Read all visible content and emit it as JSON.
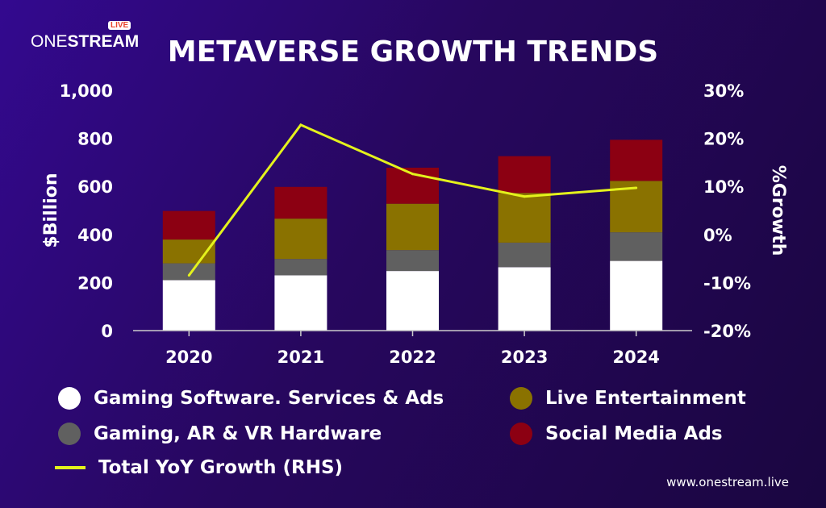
{
  "brand": {
    "name_light": "ONE",
    "name_bold": "STREAM",
    "badge": "LIVE",
    "url": "www.onestream.live"
  },
  "colors": {
    "background": "#2a0875",
    "line": "#e4f21c",
    "series": [
      "#ffffff",
      "#606060",
      "#8a7200",
      "#8c0012"
    ]
  },
  "chart_data": {
    "type": "bar",
    "stacked": true,
    "title": "METAVERSE GROWTH TRENDS",
    "categories": [
      "2020",
      "2021",
      "2022",
      "2023",
      "2024"
    ],
    "series": [
      {
        "name": "Gaming Software. Services & Ads",
        "values": [
          210,
          230,
          248,
          264,
          290
        ]
      },
      {
        "name": "Gaming, AR & VR Hardware",
        "values": [
          70,
          68,
          87,
          102,
          119
        ]
      },
      {
        "name": "Live Entertainment",
        "values": [
          99,
          168,
          193,
          207,
          214
        ]
      },
      {
        "name": "Social Media Ads",
        "values": [
          119,
          132,
          150,
          153,
          171
        ]
      }
    ],
    "line_series": {
      "name": "Total YoY Growth (RHS)",
      "axis": "right",
      "values": [
        -8.5,
        22.8,
        12.6,
        7.9,
        9.7
      ]
    },
    "ylabel": "$Billion",
    "ylim": [
      0,
      1000
    ],
    "yticks": [
      "0",
      "200",
      "400",
      "600",
      "800",
      "1,000"
    ],
    "y2label": "%Growth",
    "y2lim": [
      -20,
      30
    ],
    "y2ticks": [
      "-20%",
      "-10%",
      "0%",
      "10%",
      "20%",
      "30%"
    ],
    "grid": false,
    "legend": "bottom"
  }
}
